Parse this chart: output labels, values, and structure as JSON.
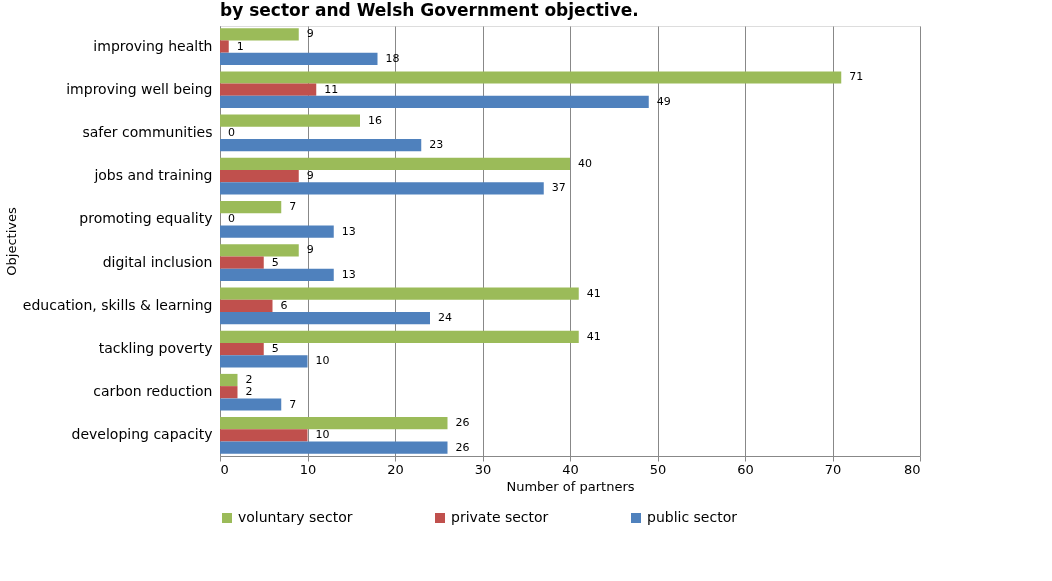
{
  "chart_data": {
    "type": "bar",
    "orientation": "horizontal",
    "title": "by sector and Welsh Government objective.",
    "xlabel": "Number of partners",
    "ylabel": "Objectives",
    "categories": [
      "improving health",
      "improving well being",
      "safer communities",
      "jobs and training",
      "promoting equality",
      "digital inclusion",
      "education, skills & learning",
      "tackling  poverty",
      "carbon reduction",
      "developing capacity"
    ],
    "series": [
      {
        "name": "voluntary sector",
        "color": "#9bbb59",
        "values": [
          9,
          71,
          16,
          40,
          7,
          9,
          41,
          41,
          2,
          26
        ]
      },
      {
        "name": "private sector",
        "color": "#c0504d",
        "values": [
          1,
          11,
          0,
          9,
          0,
          5,
          6,
          5,
          2,
          10
        ]
      },
      {
        "name": "public sector",
        "color": "#4f81bd",
        "values": [
          18,
          49,
          23,
          37,
          13,
          13,
          24,
          10,
          7,
          26
        ]
      }
    ],
    "xlim": [
      0,
      80
    ],
    "xticks": [
      0,
      10,
      20,
      30,
      40,
      50,
      60,
      70,
      80
    ],
    "grid": "x",
    "legend": "bottom",
    "data_labels": true
  }
}
